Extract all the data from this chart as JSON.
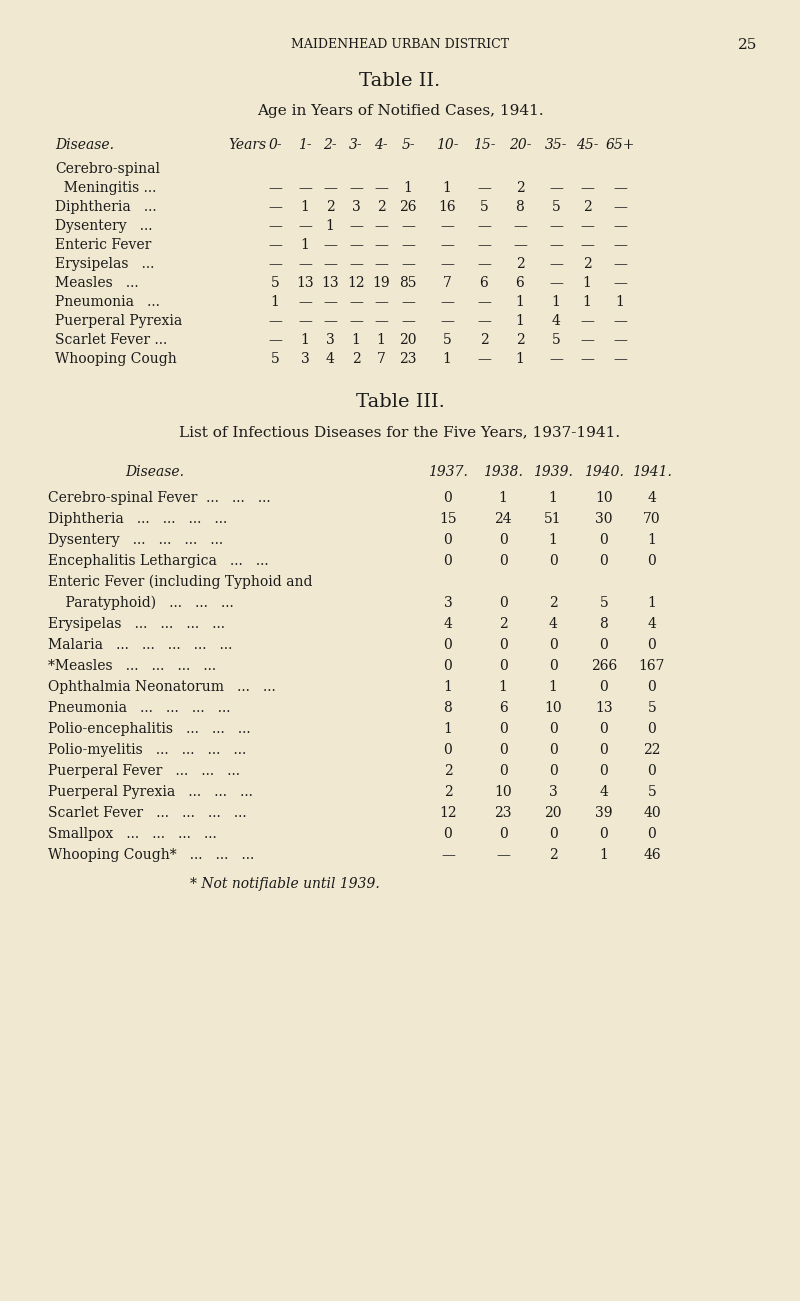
{
  "bg_color": "#f0e8d0",
  "text_color": "#1a1a1a",
  "page_header": "MAIDENHEAD URBAN DISTRICT",
  "page_number": "25",
  "table2_title": "Table II.",
  "table2_subtitle": "Age in Years of Notified Cases, 1941.",
  "table2_col_header_label": "Disease.",
  "table2_age_labels": [
    "0-",
    "1-",
    "2-",
    "3-",
    "4-",
    "5-",
    "10-",
    "15-",
    "20-",
    "35-",
    "45-",
    "65+"
  ],
  "table2_rows": [
    {
      "disease": "Cerebro-spinal",
      "values": [
        "",
        "",
        "",
        "",
        "",
        "",
        "",
        "",
        "",
        "",
        "",
        ""
      ]
    },
    {
      "disease": "  Meningitis ...",
      "values": [
        "—",
        "—",
        "—",
        "—",
        "—",
        "1",
        "1",
        "—",
        "2",
        "—",
        "—",
        "—"
      ]
    },
    {
      "disease": "Diphtheria   ...",
      "values": [
        "—",
        "1",
        "2",
        "3",
        "2",
        "26",
        "16",
        "5",
        "8",
        "5",
        "2",
        "—"
      ]
    },
    {
      "disease": "Dysentery   ...",
      "values": [
        "—",
        "—",
        "1",
        "—",
        "—",
        "—",
        "—",
        "—",
        "—",
        "—",
        "—",
        "—"
      ]
    },
    {
      "disease": "Enteric Fever",
      "values": [
        "—",
        "1",
        "—",
        "—",
        "—",
        "—",
        "—",
        "—",
        "—",
        "—",
        "—",
        "—"
      ]
    },
    {
      "disease": "Erysipelas   ...",
      "values": [
        "—",
        "—",
        "—",
        "—",
        "—",
        "—",
        "—",
        "—",
        "2",
        "—",
        "2",
        "—"
      ]
    },
    {
      "disease": "Measles   ...",
      "values": [
        "5",
        "13",
        "13",
        "12",
        "19",
        "85",
        "7",
        "6",
        "6",
        "—",
        "1",
        "—"
      ]
    },
    {
      "disease": "Pneumonia   ...",
      "values": [
        "1",
        "—",
        "—",
        "—",
        "—",
        "—",
        "—",
        "—",
        "1",
        "1",
        "1",
        "1"
      ]
    },
    {
      "disease": "Puerperal Pyrexia",
      "values": [
        "—",
        "—",
        "—",
        "—",
        "—",
        "—",
        "—",
        "—",
        "1",
        "4",
        "—",
        "—"
      ]
    },
    {
      "disease": "Scarlet Fever ...",
      "values": [
        "—",
        "1",
        "3",
        "1",
        "1",
        "20",
        "5",
        "2",
        "2",
        "5",
        "—",
        "—"
      ]
    },
    {
      "disease": "Whooping Cough",
      "values": [
        "5",
        "3",
        "4",
        "2",
        "7",
        "23",
        "1",
        "—",
        "1",
        "—",
        "—",
        "—"
      ]
    }
  ],
  "table3_title": "Table III.",
  "table3_subtitle": "List of Infectious Diseases for the Five Years, 1937-1941.",
  "table3_col_header_label": "Disease.",
  "table3_year_cols": [
    "1937.",
    "1938.",
    "1939.",
    "1940.",
    "1941."
  ],
  "table3_rows": [
    {
      "disease": "Cerebro-spinal Fever  ...   ...   ...",
      "values": [
        "0",
        "1",
        "1",
        "10",
        "4"
      ]
    },
    {
      "disease": "Diphtheria   ...   ...   ...   ...",
      "values": [
        "15",
        "24",
        "51",
        "30",
        "70"
      ]
    },
    {
      "disease": "Dysentery   ...   ...   ...   ...",
      "values": [
        "0",
        "0",
        "1",
        "0",
        "1"
      ]
    },
    {
      "disease": "Encephalitis Lethargica   ...   ...",
      "values": [
        "0",
        "0",
        "0",
        "0",
        "0"
      ]
    },
    {
      "disease": "Enteric Fever (including Typhoid and",
      "values": [
        "",
        "",
        "",
        "",
        ""
      ]
    },
    {
      "disease": "    Paratyphoid)   ...   ...   ...",
      "values": [
        "3",
        "0",
        "2",
        "5",
        "1"
      ]
    },
    {
      "disease": "Erysipelas   ...   ...   ...   ...",
      "values": [
        "4",
        "2",
        "4",
        "8",
        "4"
      ]
    },
    {
      "disease": "Malaria   ...   ...   ...   ...   ...",
      "values": [
        "0",
        "0",
        "0",
        "0",
        "0"
      ]
    },
    {
      "disease": "*Measles   ...   ...   ...   ...",
      "values": [
        "0",
        "0",
        "0",
        "266",
        "167"
      ]
    },
    {
      "disease": "Ophthalmia Neonatorum   ...   ...",
      "values": [
        "1",
        "1",
        "1",
        "0",
        "0"
      ]
    },
    {
      "disease": "Pneumonia   ...   ...   ...   ...",
      "values": [
        "8",
        "6",
        "10",
        "13",
        "5"
      ]
    },
    {
      "disease": "Polio-encephalitis   ...   ...   ...",
      "values": [
        "1",
        "0",
        "0",
        "0",
        "0"
      ]
    },
    {
      "disease": "Polio-myelitis   ...   ...   ...   ...",
      "values": [
        "0",
        "0",
        "0",
        "0",
        "22"
      ]
    },
    {
      "disease": "Puerperal Fever   ...   ...   ...",
      "values": [
        "2",
        "0",
        "0",
        "0",
        "0"
      ]
    },
    {
      "disease": "Puerperal Pyrexia   ...   ...   ...",
      "values": [
        "2",
        "10",
        "3",
        "4",
        "5"
      ]
    },
    {
      "disease": "Scarlet Fever   ...   ...   ...   ...",
      "values": [
        "12",
        "23",
        "20",
        "39",
        "40"
      ]
    },
    {
      "disease": "Smallpox   ...   ...   ...   ...",
      "values": [
        "0",
        "0",
        "0",
        "0",
        "0"
      ]
    },
    {
      "disease": "Whooping Cough*   ...   ...   ...",
      "values": [
        "—",
        "—",
        "2",
        "1",
        "46"
      ]
    }
  ],
  "table3_footnote": "* Not notifiable until 1939."
}
